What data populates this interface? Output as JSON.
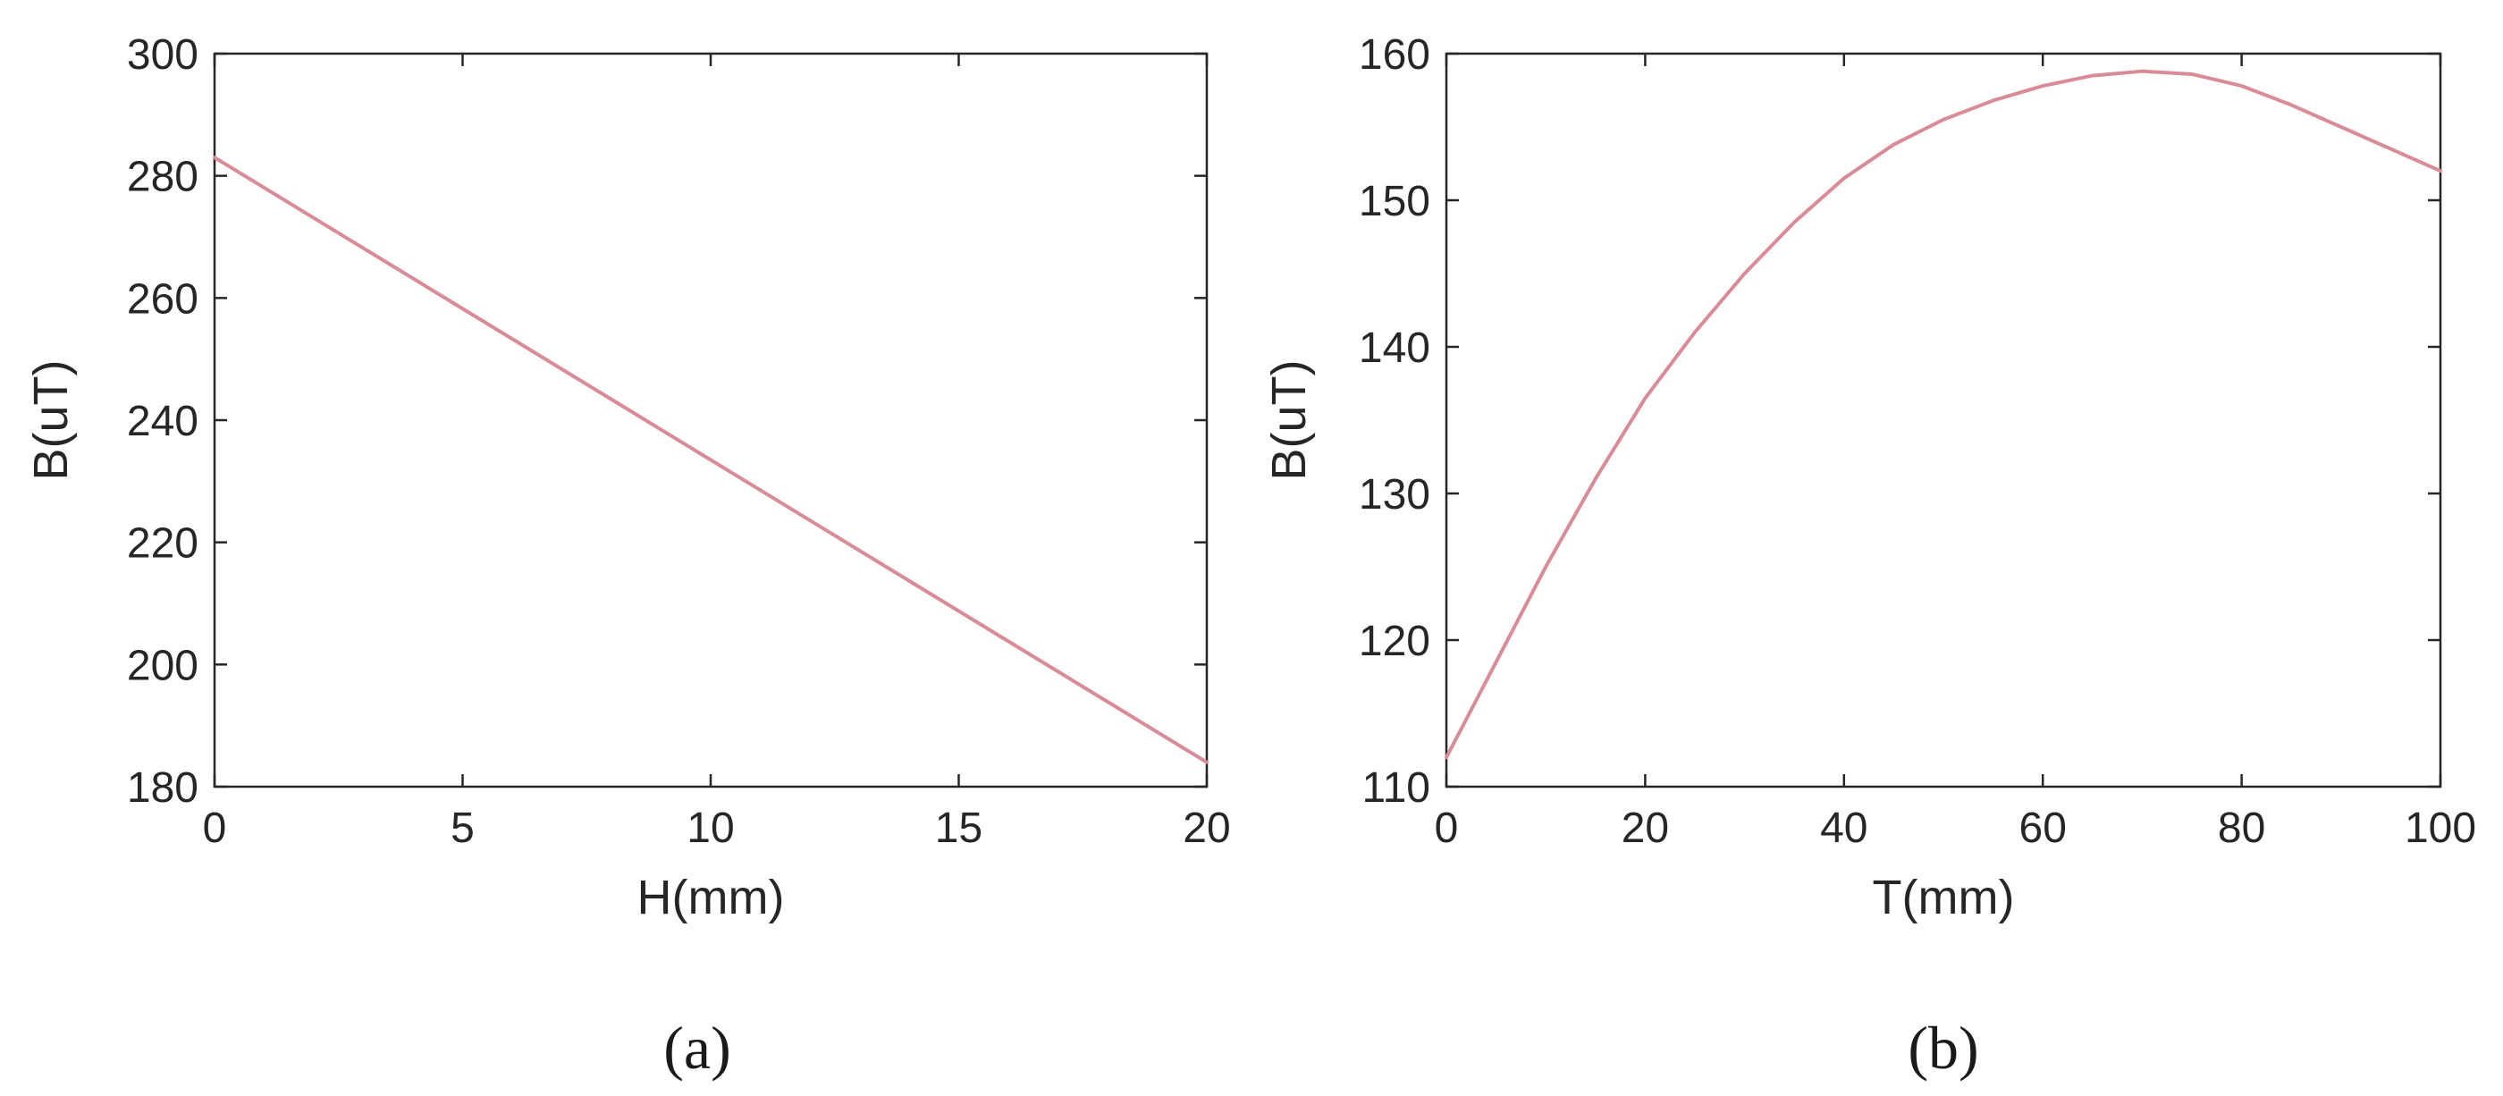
{
  "chart_data": [
    {
      "type": "line",
      "panel_label": "(a)",
      "title": "",
      "xlabel": "H(mm)",
      "ylabel": "B(uT)",
      "xlim": [
        0,
        20
      ],
      "ylim": [
        180,
        300
      ],
      "xticks": [
        0,
        5,
        10,
        15,
        20
      ],
      "yticks": [
        180,
        200,
        220,
        240,
        260,
        280,
        300
      ],
      "grid": false,
      "series": [
        {
          "color": "#d98c98",
          "x": [
            0,
            2,
            4,
            6,
            8,
            10,
            12,
            14,
            16,
            18,
            20
          ],
          "y": [
            283,
            273.1,
            263.2,
            253.3,
            243.4,
            233.5,
            223.6,
            213.7,
            203.8,
            193.9,
            184
          ]
        }
      ]
    },
    {
      "type": "line",
      "panel_label": "(b)",
      "title": "",
      "xlabel": "T(mm)",
      "ylabel": "B(uT)",
      "xlim": [
        0,
        100
      ],
      "ylim": [
        110,
        160
      ],
      "xticks": [
        0,
        20,
        40,
        60,
        80,
        100
      ],
      "yticks": [
        110,
        120,
        130,
        140,
        150,
        160
      ],
      "grid": false,
      "series": [
        {
          "color": "#d98c98",
          "x": [
            0,
            5,
            10,
            15,
            20,
            25,
            30,
            35,
            40,
            45,
            50,
            55,
            60,
            65,
            70,
            75,
            80,
            85,
            90,
            95,
            100
          ],
          "y": [
            112,
            118.5,
            125,
            131,
            136.5,
            141,
            145,
            148.5,
            151.5,
            153.8,
            155.5,
            156.8,
            157.8,
            158.5,
            158.8,
            158.6,
            157.8,
            156.5,
            155,
            153.5,
            152
          ]
        }
      ]
    }
  ]
}
